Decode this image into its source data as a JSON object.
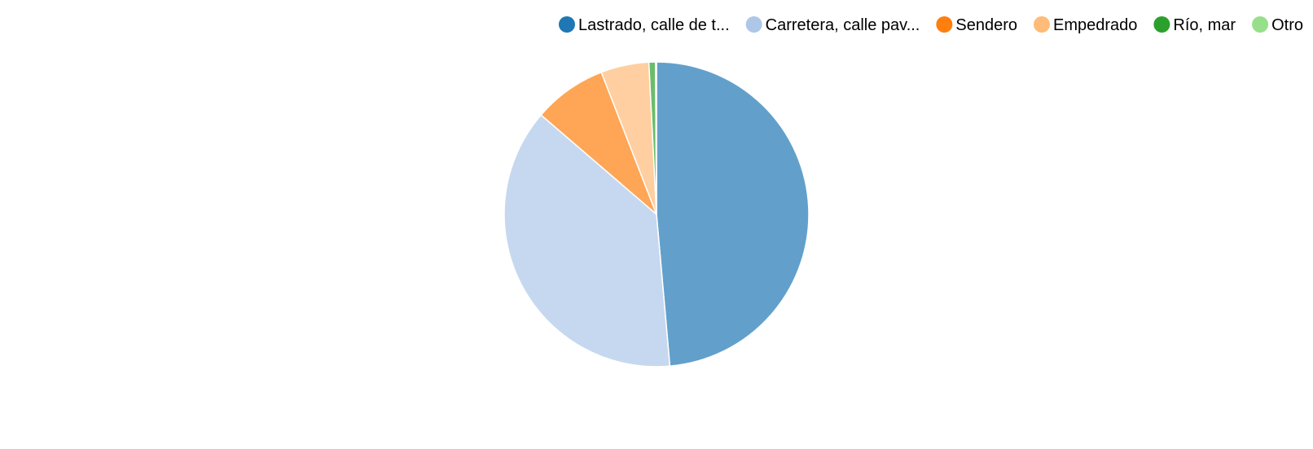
{
  "chart_data": {
    "type": "pie",
    "title": "",
    "legend_position": "top-right",
    "slices": [
      {
        "label": "Lastrado, calle de t...",
        "value": 48.6,
        "color": "#1f77b4"
      },
      {
        "label": "Carretera, calle pav...",
        "value": 37.7,
        "color": "#aec7e8"
      },
      {
        "label": "Sendero",
        "value": 7.8,
        "color": "#ff7f0e"
      },
      {
        "label": "Empedrado",
        "value": 5.1,
        "color": "#ffbb78"
      },
      {
        "label": "Río, mar",
        "value": 0.7,
        "color": "#2ca02c"
      },
      {
        "label": "Otro",
        "value": 0.1,
        "color": "#98df8a"
      }
    ]
  }
}
